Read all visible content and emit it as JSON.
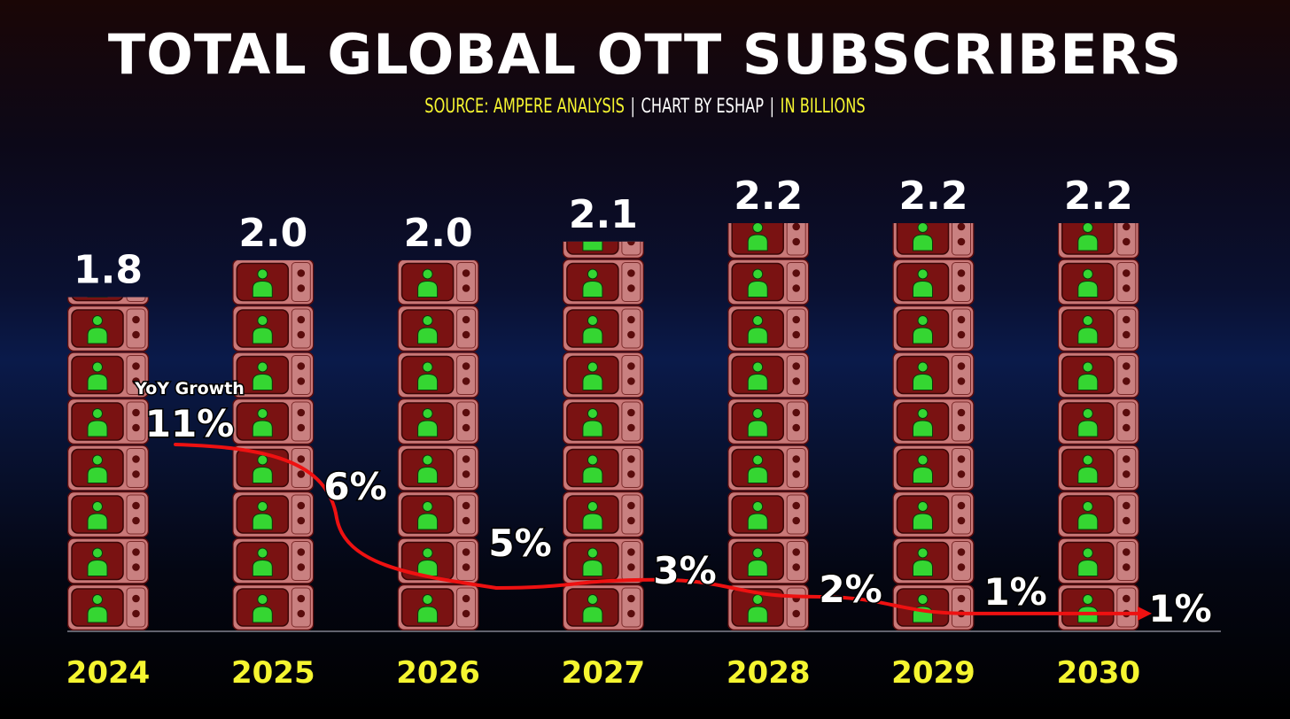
{
  "header": {
    "title": "TOTAL GLOBAL OTT SUBSCRIBERS",
    "source": "SOURCE: AMPERE ANALYSIS",
    "credit": "CHART BY ESHAP",
    "unit": "IN BILLIONS",
    "separator": "|"
  },
  "colors": {
    "tv_body": "#7a1212",
    "tv_frame": "#c97878",
    "tv_panel": "#c98080",
    "person": "#35d632",
    "title": "#ffffff",
    "year_label": "#f5f530",
    "trend_line": "#ee1111"
  },
  "icons": {
    "stack_unit": "tv-person-icon"
  },
  "chart_data": {
    "type": "bar",
    "title": "TOTAL GLOBAL OTT SUBSCRIBERS",
    "xlabel": "",
    "ylabel": "",
    "categories": [
      "2024",
      "2025",
      "2026",
      "2027",
      "2028",
      "2029",
      "2030"
    ],
    "values": [
      1.8,
      2.0,
      2.0,
      2.1,
      2.2,
      2.2,
      2.2
    ],
    "value_labels": [
      "1.8",
      "2.0",
      "2.0",
      "2.1",
      "2.2",
      "2.2",
      "2.2"
    ],
    "ylim": [
      0,
      2.2
    ],
    "grid": false,
    "legend": "none",
    "growth_series": {
      "title": "YoY Growth",
      "values": [
        11,
        6,
        5,
        3,
        2,
        1,
        1
      ],
      "labels": [
        "11%",
        "6%",
        "5%",
        "3%",
        "2%",
        "1%",
        "1%"
      ]
    }
  }
}
